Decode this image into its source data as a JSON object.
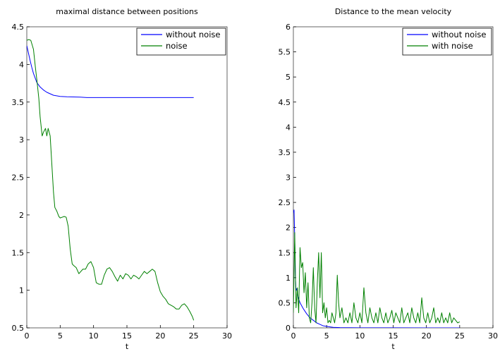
{
  "chart_data": [
    {
      "type": "line",
      "title": "maximal distance between positions",
      "xlabel": "t",
      "ylabel": "",
      "xlim": [
        0,
        30
      ],
      "ylim": [
        0.5,
        4.5
      ],
      "x_ticks": [
        "0",
        "5",
        "10",
        "15",
        "20",
        "25",
        "30"
      ],
      "y_ticks": [
        "0.5",
        "1",
        "1.5",
        "2",
        "2.5",
        "3",
        "3.5",
        "4",
        "4.5"
      ],
      "legend_position": "top-right",
      "series": [
        {
          "name": "without noise",
          "color": "#0000ff",
          "x": [
            0,
            0.25,
            0.5,
            0.75,
            1.0,
            1.25,
            1.5,
            2.0,
            2.5,
            3.0,
            3.5,
            4.0,
            5.0,
            6.0,
            8.0,
            9.0,
            10.0,
            15.0,
            20.0,
            25.0
          ],
          "y": [
            4.25,
            4.15,
            4.05,
            3.96,
            3.88,
            3.82,
            3.76,
            3.7,
            3.66,
            3.63,
            3.61,
            3.59,
            3.575,
            3.57,
            3.565,
            3.56,
            3.56,
            3.56,
            3.56,
            3.56
          ]
        },
        {
          "name": "noise",
          "color": "#008000",
          "x": [
            0,
            0.3,
            0.6,
            1.0,
            1.3,
            1.5,
            1.8,
            2.0,
            2.3,
            2.5,
            2.8,
            3.0,
            3.2,
            3.5,
            3.8,
            4.0,
            4.2,
            4.5,
            4.8,
            5.0,
            5.3,
            5.6,
            5.9,
            6.2,
            6.5,
            6.8,
            7.0,
            7.4,
            7.8,
            8.1,
            8.4,
            8.8,
            9.2,
            9.6,
            10.0,
            10.4,
            10.8,
            11.2,
            11.6,
            12.0,
            12.4,
            12.8,
            13.2,
            13.6,
            14.0,
            14.4,
            14.8,
            15.2,
            15.6,
            16.0,
            16.4,
            16.8,
            17.2,
            17.6,
            18.0,
            18.4,
            18.8,
            19.2,
            19.6,
            20.0,
            20.4,
            20.8,
            21.2,
            21.6,
            22.0,
            22.4,
            22.8,
            23.2,
            23.6,
            24.0,
            24.4,
            24.8,
            25.0
          ],
          "y": [
            4.32,
            4.33,
            4.32,
            4.2,
            3.95,
            3.8,
            3.55,
            3.3,
            3.05,
            3.1,
            3.15,
            3.05,
            3.15,
            3.05,
            2.6,
            2.3,
            2.1,
            2.05,
            1.98,
            1.96,
            1.97,
            1.98,
            1.97,
            1.85,
            1.55,
            1.35,
            1.33,
            1.3,
            1.22,
            1.25,
            1.28,
            1.28,
            1.35,
            1.38,
            1.3,
            1.1,
            1.08,
            1.08,
            1.2,
            1.28,
            1.3,
            1.25,
            1.18,
            1.12,
            1.2,
            1.15,
            1.22,
            1.2,
            1.15,
            1.2,
            1.18,
            1.15,
            1.2,
            1.25,
            1.22,
            1.25,
            1.28,
            1.25,
            1.1,
            0.98,
            0.92,
            0.88,
            0.82,
            0.8,
            0.78,
            0.75,
            0.75,
            0.8,
            0.82,
            0.78,
            0.72,
            0.65,
            0.6
          ]
        }
      ]
    },
    {
      "type": "line",
      "title": "Distance to the mean velocity",
      "xlabel": "t",
      "ylabel": "",
      "xlim": [
        0,
        30
      ],
      "ylim": [
        0,
        6
      ],
      "x_ticks": [
        "0",
        "5",
        "10",
        "15",
        "20",
        "25",
        "30"
      ],
      "y_ticks": [
        "0",
        "0.5",
        "1",
        "1.5",
        "2",
        "2.5",
        "3",
        "3.5",
        "4",
        "4.5",
        "5",
        "5.5",
        "6"
      ],
      "legend_position": "top-right",
      "series": [
        {
          "name": "without noise",
          "color": "#0000ff",
          "x": [
            0,
            0.1,
            0.2,
            0.3,
            0.4,
            0.5,
            0.7,
            1.0,
            1.5,
            2.0,
            2.5,
            3.0,
            3.5,
            4.0,
            4.5,
            5.0,
            5.5,
            6.0,
            7.0,
            10.0,
            15.0,
            20.0,
            25.0
          ],
          "y": [
            2.3,
            2.35,
            1.8,
            1.0,
            0.75,
            0.78,
            0.62,
            0.5,
            0.38,
            0.28,
            0.2,
            0.15,
            0.1,
            0.07,
            0.04,
            0.03,
            0.02,
            0.01,
            0.005,
            0.002,
            0.001,
            0.0005,
            0.0002
          ]
        },
        {
          "name": "with noise",
          "color": "#008000",
          "x": [
            0,
            0.2,
            0.4,
            0.6,
            0.8,
            1.0,
            1.2,
            1.4,
            1.6,
            1.8,
            2.0,
            2.2,
            2.4,
            2.6,
            2.8,
            3.0,
            3.2,
            3.4,
            3.6,
            3.8,
            4.0,
            4.2,
            4.4,
            4.6,
            4.8,
            5.0,
            5.2,
            5.4,
            5.6,
            5.8,
            6.0,
            6.2,
            6.4,
            6.6,
            6.8,
            7.0,
            7.3,
            7.6,
            7.9,
            8.2,
            8.5,
            8.8,
            9.1,
            9.4,
            9.7,
            10.0,
            10.3,
            10.6,
            10.9,
            11.2,
            11.5,
            11.8,
            12.1,
            12.4,
            12.7,
            13.0,
            13.3,
            13.6,
            13.9,
            14.2,
            14.5,
            14.8,
            15.1,
            15.4,
            15.7,
            16.0,
            16.3,
            16.6,
            16.9,
            17.2,
            17.5,
            17.8,
            18.1,
            18.4,
            18.7,
            19.0,
            19.3,
            19.6,
            19.9,
            20.2,
            20.5,
            20.8,
            21.1,
            21.4,
            21.7,
            22.0,
            22.3,
            22.6,
            22.9,
            23.2,
            23.5,
            23.8,
            24.1,
            24.4,
            24.7,
            25.0
          ],
          "y": [
            0.3,
            1.9,
            0.4,
            0.8,
            0.3,
            1.6,
            1.2,
            1.3,
            0.7,
            1.1,
            0.4,
            0.9,
            0.2,
            0.1,
            0.5,
            1.2,
            0.4,
            0.1,
            0.9,
            1.5,
            0.6,
            1.5,
            0.3,
            0.5,
            0.2,
            0.4,
            0.1,
            0.15,
            0.1,
            0.3,
            0.2,
            0.1,
            0.3,
            1.05,
            0.5,
            0.2,
            0.4,
            0.1,
            0.2,
            0.1,
            0.3,
            0.1,
            0.5,
            0.2,
            0.1,
            0.3,
            0.1,
            0.8,
            0.3,
            0.1,
            0.4,
            0.2,
            0.1,
            0.3,
            0.1,
            0.4,
            0.2,
            0.1,
            0.3,
            0.1,
            0.2,
            0.35,
            0.1,
            0.3,
            0.2,
            0.1,
            0.4,
            0.1,
            0.2,
            0.3,
            0.1,
            0.4,
            0.2,
            0.1,
            0.3,
            0.1,
            0.6,
            0.2,
            0.1,
            0.3,
            0.1,
            0.2,
            0.4,
            0.1,
            0.2,
            0.1,
            0.3,
            0.1,
            0.2,
            0.1,
            0.3,
            0.1,
            0.2,
            0.15,
            0.1,
            0.12
          ]
        }
      ]
    }
  ]
}
